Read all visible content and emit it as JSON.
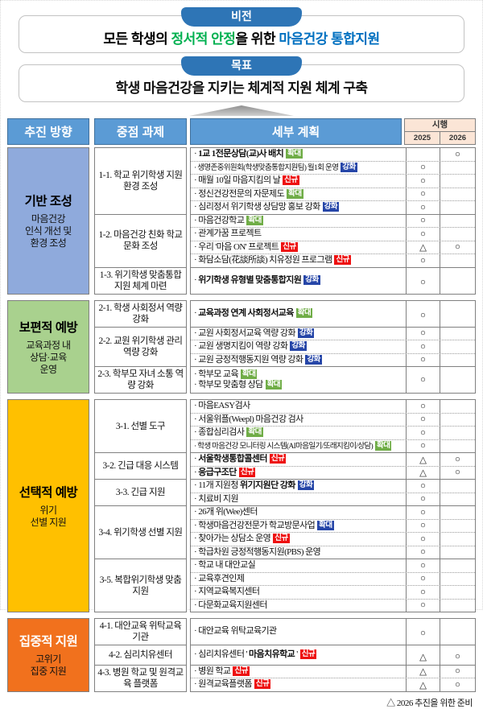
{
  "vision": {
    "badge": "비전",
    "parts": [
      {
        "text": "모든 학생의 ",
        "color": "#000000"
      },
      {
        "text": "정서적 안정",
        "color": "#00b050"
      },
      {
        "text": "을 위한 ",
        "color": "#000000"
      },
      {
        "text": "마음건강 통합지원",
        "color": "#0070c0"
      }
    ]
  },
  "goal": {
    "badge": "목표",
    "text": "학생 마음건강을 지키는 체계적 지원 체계 구축"
  },
  "footnote": "△ 2026 추진을 위한 준비",
  "table": {
    "header": {
      "direction": "추진 방향",
      "task": "중점 과제",
      "plan": "세부 계획",
      "impl": "시행",
      "year1": "2025",
      "year2": "2026"
    },
    "badge_types": {
      "expand": {
        "label": "확대",
        "bg": "#70ad47"
      },
      "expand_blue": {
        "label": "확대",
        "bg": "#2646a8"
      },
      "reinforce": {
        "label": "강화",
        "bg": "#2646a8"
      },
      "new": {
        "label": "신규",
        "bg": "#ee1111"
      }
    },
    "groups": [
      {
        "id": "foundation",
        "bg": "#8faadc",
        "title": "기반 조성",
        "title_color": "#000000",
        "subtitle_lines": [
          "마음건강",
          "인식 개선 및",
          "환경 조성"
        ],
        "tasks": [
          {
            "label": "1-1. 학교 위기학생 지원 환경 조성",
            "rows": [
              {
                "lines": [
                  {
                    "segs": [
                      {
                        "t": "1교 1전문상담(교)사 배치",
                        "b": true
                      }
                    ],
                    "badge": "expand"
                  }
                ],
                "m25": "",
                "m26": "○"
              },
              {
                "small": true,
                "lines": [
                  {
                    "segs": [
                      {
                        "t": "생명존중위원회(학생맞춤통합지원팀) 월1회 운영"
                      }
                    ],
                    "badge": "reinforce"
                  }
                ],
                "m25": "○",
                "m26": ""
              },
              {
                "lines": [
                  {
                    "segs": [
                      {
                        "t": "매월 10일 마음지킴의 날"
                      }
                    ],
                    "badge": "new"
                  }
                ],
                "m25": "○",
                "m26": ""
              },
              {
                "lines": [
                  {
                    "segs": [
                      {
                        "t": "정신건강전문의 자문제도"
                      }
                    ],
                    "badge": "expand"
                  }
                ],
                "m25": "○",
                "m26": ""
              },
              {
                "lines": [
                  {
                    "segs": [
                      {
                        "t": "심리정서 위기학생 상담망 홍보 강화"
                      }
                    ],
                    "badge": "reinforce"
                  }
                ],
                "m25": "○",
                "m26": ""
              }
            ]
          },
          {
            "label": "1-2. 마음건강 친화 학교문화 조성",
            "rows": [
              {
                "lines": [
                  {
                    "segs": [
                      {
                        "t": "마음건강학교"
                      }
                    ],
                    "badge": "expand"
                  }
                ],
                "m25": "○",
                "m26": ""
              },
              {
                "lines": [
                  {
                    "segs": [
                      {
                        "t": "관계가꿈 프로젝트"
                      }
                    ],
                    "badge": null
                  }
                ],
                "m25": "○",
                "m26": ""
              },
              {
                "lines": [
                  {
                    "segs": [
                      {
                        "t": "우리 '마음 ON' 프로젝트"
                      }
                    ],
                    "badge": "new"
                  }
                ],
                "m25": "△",
                "m26": "○"
              },
              {
                "lines": [
                  {
                    "segs": [
                      {
                        "t": "화담소담(花談所談) 치유정원 프로그램"
                      }
                    ],
                    "badge": "new"
                  }
                ],
                "m25": "○",
                "m26": ""
              }
            ]
          },
          {
            "label": "1-3. 위기학생 맞춤통합 지원 체계 마련",
            "rows": [
              {
                "lines": [
                  {
                    "segs": [
                      {
                        "t": "위기학생 유형별 맞춤통합지원",
                        "b": true
                      }
                    ],
                    "badge": "reinforce"
                  }
                ],
                "m25": "○",
                "m26": ""
              }
            ]
          }
        ]
      },
      {
        "id": "universal-prevention",
        "bg": "#a9d18e",
        "title": "보편적 예방",
        "title_color": "#000000",
        "subtitle_lines": [
          "교육과정 내",
          "상담·교육",
          "운영"
        ],
        "tasks": [
          {
            "label": "2-1. 학생 사회정서 역량 강화",
            "rows": [
              {
                "lines": [
                  {
                    "segs": [
                      {
                        "t": "교육과정 연계 사회정서교육",
                        "b": true
                      }
                    ],
                    "badge": "expand"
                  }
                ],
                "m25": "○",
                "m26": ""
              }
            ]
          },
          {
            "label": "2-2. 교원 위기학생 관리 역량 강화",
            "rows": [
              {
                "lines": [
                  {
                    "segs": [
                      {
                        "t": "교원 사회정서교육 역량 강화"
                      }
                    ],
                    "badge": "reinforce"
                  }
                ],
                "m25": "○",
                "m26": ""
              },
              {
                "lines": [
                  {
                    "segs": [
                      {
                        "t": "교원 생명지킴이 역량 강화"
                      }
                    ],
                    "badge": "reinforce"
                  }
                ],
                "m25": "○",
                "m26": ""
              },
              {
                "lines": [
                  {
                    "segs": [
                      {
                        "t": "교원 긍정적행동지원 역량 강화"
                      }
                    ],
                    "badge": "reinforce"
                  }
                ],
                "m25": "○",
                "m26": ""
              }
            ]
          },
          {
            "label": "2-3. 학부모 자녀 소통 역량 강화",
            "rows": [
              {
                "lines": [
                  {
                    "segs": [
                      {
                        "t": "학부모 교육"
                      }
                    ],
                    "badge": "expand"
                  },
                  {
                    "segs": [
                      {
                        "t": "학부모 맞춤형 상담"
                      }
                    ],
                    "badge": "expand"
                  }
                ],
                "m25": "○",
                "m26": ""
              }
            ]
          }
        ]
      },
      {
        "id": "selective-prevention",
        "bg": "#ffc000",
        "title": "선택적 예방",
        "title_color": "#000000",
        "subtitle_lines": [
          "위기",
          "선별 지원"
        ],
        "tasks": [
          {
            "label": "3-1. 선별 도구",
            "rows": [
              {
                "lines": [
                  {
                    "segs": [
                      {
                        "t": "마음EASY검사"
                      }
                    ],
                    "badge": null
                  }
                ],
                "m25": "○",
                "m26": ""
              },
              {
                "lines": [
                  {
                    "segs": [
                      {
                        "t": "서울위플(Weepl) 마음건강 검사"
                      }
                    ],
                    "badge": null
                  }
                ],
                "m25": "○",
                "m26": ""
              },
              {
                "lines": [
                  {
                    "segs": [
                      {
                        "t": "종합심리검사"
                      }
                    ],
                    "badge": "expand"
                  }
                ],
                "m25": "○",
                "m26": ""
              },
              {
                "small": true,
                "lines": [
                  {
                    "segs": [
                      {
                        "t": "학생 마음건강 모니터링 시스템(AI마음일기/또래지킴이/상담)"
                      }
                    ],
                    "badge": "expand"
                  }
                ],
                "m25": "○",
                "m26": ""
              }
            ]
          },
          {
            "label": "3-2. 긴급 대응 시스템",
            "rows": [
              {
                "lines": [
                  {
                    "segs": [
                      {
                        "t": "서울학생통합콜센터",
                        "b": true
                      }
                    ],
                    "badge": "new"
                  }
                ],
                "m25": "△",
                "m26": "○"
              },
              {
                "lines": [
                  {
                    "segs": [
                      {
                        "t": "응급구조단",
                        "b": true
                      }
                    ],
                    "badge": "new"
                  }
                ],
                "m25": "△",
                "m26": "○"
              }
            ]
          },
          {
            "label": "3-3. 긴급 지원",
            "rows": [
              {
                "lines": [
                  {
                    "segs": [
                      {
                        "t": "11개 지원청 "
                      },
                      {
                        "t": "위기지원단 강화",
                        "b": true
                      }
                    ],
                    "badge": "reinforce"
                  }
                ],
                "m25": "○",
                "m26": ""
              },
              {
                "lines": [
                  {
                    "segs": [
                      {
                        "t": "치료비 지원"
                      }
                    ],
                    "badge": null
                  }
                ],
                "m25": "○",
                "m26": ""
              }
            ]
          },
          {
            "label": "3-4. 위기학생 선별 지원",
            "rows": [
              {
                "lines": [
                  {
                    "segs": [
                      {
                        "t": "26개 위(Wee)센터"
                      }
                    ],
                    "badge": null
                  }
                ],
                "m25": "○",
                "m26": ""
              },
              {
                "lines": [
                  {
                    "segs": [
                      {
                        "t": "학생마음건강전문가 학교방문사업"
                      }
                    ],
                    "badge": "expand_blue"
                  }
                ],
                "m25": "○",
                "m26": ""
              },
              {
                "lines": [
                  {
                    "segs": [
                      {
                        "t": "찾아가는 상담소 운영"
                      }
                    ],
                    "badge": "new"
                  }
                ],
                "m25": "○",
                "m26": ""
              },
              {
                "lines": [
                  {
                    "segs": [
                      {
                        "t": "학급차원 긍정적행동지원(PBS) 운영"
                      }
                    ],
                    "badge": null
                  }
                ],
                "m25": "○",
                "m26": ""
              }
            ]
          },
          {
            "label": "3-5. 복합위기학생 맞춤 지원",
            "rows": [
              {
                "lines": [
                  {
                    "segs": [
                      {
                        "t": "학교 내 대안교실"
                      }
                    ],
                    "badge": null
                  }
                ],
                "m25": "○",
                "m26": ""
              },
              {
                "lines": [
                  {
                    "segs": [
                      {
                        "t": "교육후견인제"
                      }
                    ],
                    "badge": null
                  }
                ],
                "m25": "○",
                "m26": ""
              },
              {
                "lines": [
                  {
                    "segs": [
                      {
                        "t": "지역교육복지센터"
                      }
                    ],
                    "badge": null
                  }
                ],
                "m25": "○",
                "m26": ""
              },
              {
                "lines": [
                  {
                    "segs": [
                      {
                        "t": "다문화교육지원센터"
                      }
                    ],
                    "badge": null
                  }
                ],
                "m25": "○",
                "m26": ""
              }
            ]
          }
        ]
      },
      {
        "id": "intensive-support",
        "bg": "#f1711d",
        "title": "집중적 지원",
        "title_color": "#ffffff",
        "subtitle_lines": [
          "고위기",
          "집중 지원"
        ],
        "tasks": [
          {
            "label": "4-1. 대안교육 위탁교육기관",
            "rows": [
              {
                "lines": [
                  {
                    "segs": [
                      {
                        "t": "대안교육 위탁교육기관"
                      }
                    ],
                    "badge": null
                  }
                ],
                "m25": "○",
                "m26": ""
              }
            ]
          },
          {
            "label": "4-2. 심리치유센터",
            "rows": [
              {
                "lines": [
                  {
                    "segs": [
                      {
                        "t": "심리치유센터 ' "
                      },
                      {
                        "t": "마음치유학교",
                        "b": true
                      },
                      {
                        "t": " '"
                      }
                    ],
                    "badge": "new"
                  }
                ],
                "m25": "△",
                "m26": "○"
              }
            ]
          },
          {
            "label": "4-3. 병원 학교 및 원격교육 플랫폼",
            "rows": [
              {
                "lines": [
                  {
                    "segs": [
                      {
                        "t": "병원 학교"
                      }
                    ],
                    "badge": "new"
                  }
                ],
                "m25": "△",
                "m26": "○"
              },
              {
                "lines": [
                  {
                    "segs": [
                      {
                        "t": "원격교육플랫폼"
                      }
                    ],
                    "badge": "new"
                  }
                ],
                "m25": "△",
                "m26": "○"
              }
            ]
          }
        ]
      }
    ]
  }
}
